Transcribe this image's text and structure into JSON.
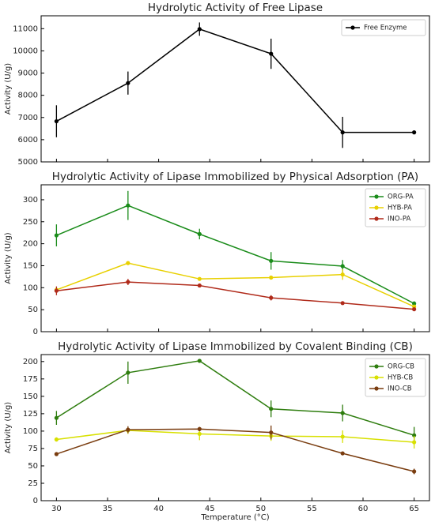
{
  "chart_data": [
    {
      "type": "line",
      "title": "Hydrolytic Activity of Free Lipase",
      "ylabel": "Activity (U/g)",
      "x": [
        30,
        37,
        44,
        51,
        58,
        65
      ],
      "series": [
        {
          "name": "Free Enzyme",
          "color": "#000000",
          "values": [
            6830,
            8550,
            10980,
            9870,
            6330,
            6330
          ],
          "errors": [
            720,
            520,
            300,
            680,
            700,
            80
          ]
        }
      ],
      "xlim": [
        28.5,
        66.5
      ],
      "xticks": [
        30,
        35,
        40,
        45,
        50,
        55,
        60,
        65
      ],
      "ylim": [
        5000,
        11580
      ],
      "yticks": [
        5000,
        6000,
        7000,
        8000,
        9000,
        10000,
        11000
      ],
      "legend": "upper right"
    },
    {
      "type": "line",
      "title": "Hydrolytic Activity of Lipase Immobilized by Physical Adsorption (PA)",
      "ylabel": "Activity (U/g)",
      "x": [
        30,
        37,
        44,
        51,
        58,
        65
      ],
      "series": [
        {
          "name": "ORG-PA",
          "color": "#1a8c1a",
          "values": [
            219,
            287,
            222,
            161,
            149,
            64
          ],
          "errors": [
            25,
            33,
            12,
            20,
            14,
            5
          ]
        },
        {
          "name": "HYB-PA",
          "color": "#e8d000",
          "values": [
            95,
            156,
            120,
            123,
            130,
            57
          ],
          "errors": [
            5,
            3,
            3,
            3,
            12,
            4
          ]
        },
        {
          "name": "INO-PA",
          "color": "#b02a1a",
          "values": [
            93,
            113,
            105,
            77,
            65,
            51
          ],
          "errors": [
            10,
            7,
            3,
            6,
            2,
            2
          ]
        }
      ],
      "xlim": [
        28.5,
        66.5
      ],
      "xticks": [
        30,
        35,
        40,
        45,
        50,
        55,
        60,
        65
      ],
      "ylim": [
        0,
        334
      ],
      "yticks": [
        0,
        50,
        100,
        150,
        200,
        250,
        300
      ],
      "legend": "upper right"
    },
    {
      "type": "line",
      "title": "Hydrolytic Activity of Lipase Immobilized by Covalent Binding (CB)",
      "ylabel": "Activity (U/g)",
      "xlabel": "Temperature (°C)",
      "x": [
        30,
        37,
        44,
        51,
        58,
        65
      ],
      "series": [
        {
          "name": "ORG-CB",
          "color": "#2e7d0e",
          "values": [
            119,
            184,
            201,
            132,
            126,
            94
          ],
          "errors": [
            10,
            16,
            2,
            12,
            12,
            12
          ]
        },
        {
          "name": "HYB-CB",
          "color": "#d8e000",
          "values": [
            88,
            101,
            96,
            93,
            92,
            84
          ],
          "errors": [
            3,
            5,
            9,
            7,
            9,
            9
          ]
        },
        {
          "name": "INO-CB",
          "color": "#7a3d10",
          "values": [
            67,
            102,
            103,
            98,
            68,
            42
          ],
          "errors": [
            2,
            5,
            3,
            10,
            2,
            4
          ]
        }
      ],
      "xlim": [
        28.5,
        66.5
      ],
      "xticks": [
        30,
        35,
        40,
        45,
        50,
        55,
        60,
        65
      ],
      "ylim": [
        0,
        210
      ],
      "yticks": [
        0,
        25,
        50,
        75,
        100,
        125,
        150,
        175,
        200
      ],
      "legend": "upper right"
    }
  ]
}
